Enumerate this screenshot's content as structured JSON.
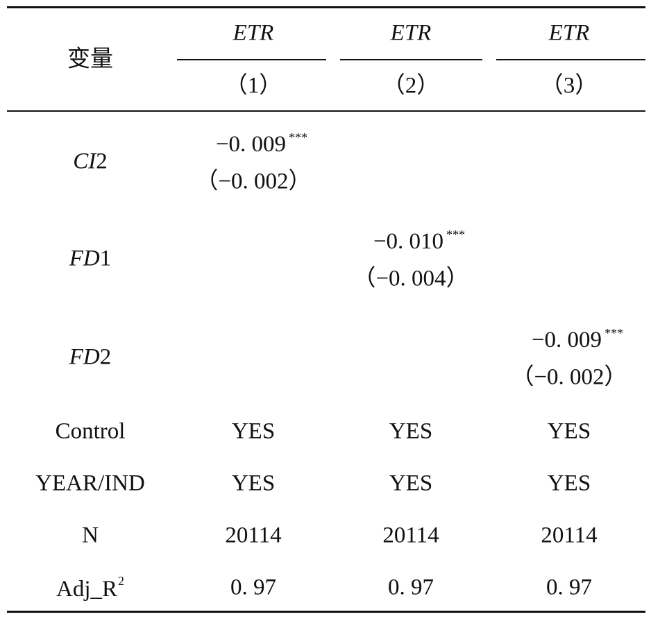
{
  "table": {
    "header": {
      "variable": "变量",
      "columns": [
        {
          "dep": "ETR",
          "num": "（1）"
        },
        {
          "dep": "ETR",
          "num": "（2）"
        },
        {
          "dep": "ETR",
          "num": "（3）"
        }
      ]
    },
    "coef_rows": [
      {
        "label": {
          "italic": "CI",
          "plain": "2"
        },
        "cells": [
          {
            "coef": "−0. 009",
            "stars": "***",
            "se": "（−0. 002）"
          },
          null,
          null
        ]
      },
      {
        "label": {
          "italic": "FD",
          "plain": "1"
        },
        "cells": [
          null,
          {
            "coef": "−0. 010",
            "stars": "***",
            "se": "（−0. 004）"
          },
          null
        ]
      },
      {
        "label": {
          "italic": "FD",
          "plain": "2"
        },
        "cells": [
          null,
          null,
          {
            "coef": "−0. 009",
            "stars": "***",
            "se": "（−0. 002）"
          }
        ]
      }
    ],
    "other_rows": [
      {
        "label": "Control",
        "values": [
          "YES",
          "YES",
          "YES"
        ]
      },
      {
        "label": "YEAR/IND",
        "values": [
          "YES",
          "YES",
          "YES"
        ]
      },
      {
        "label": "N",
        "values": [
          20114,
          20114,
          20114
        ]
      },
      {
        "label": {
          "text": "Adj_R",
          "sup": "2"
        },
        "values": [
          "0. 97",
          "0. 97",
          "0. 97"
        ]
      }
    ]
  }
}
